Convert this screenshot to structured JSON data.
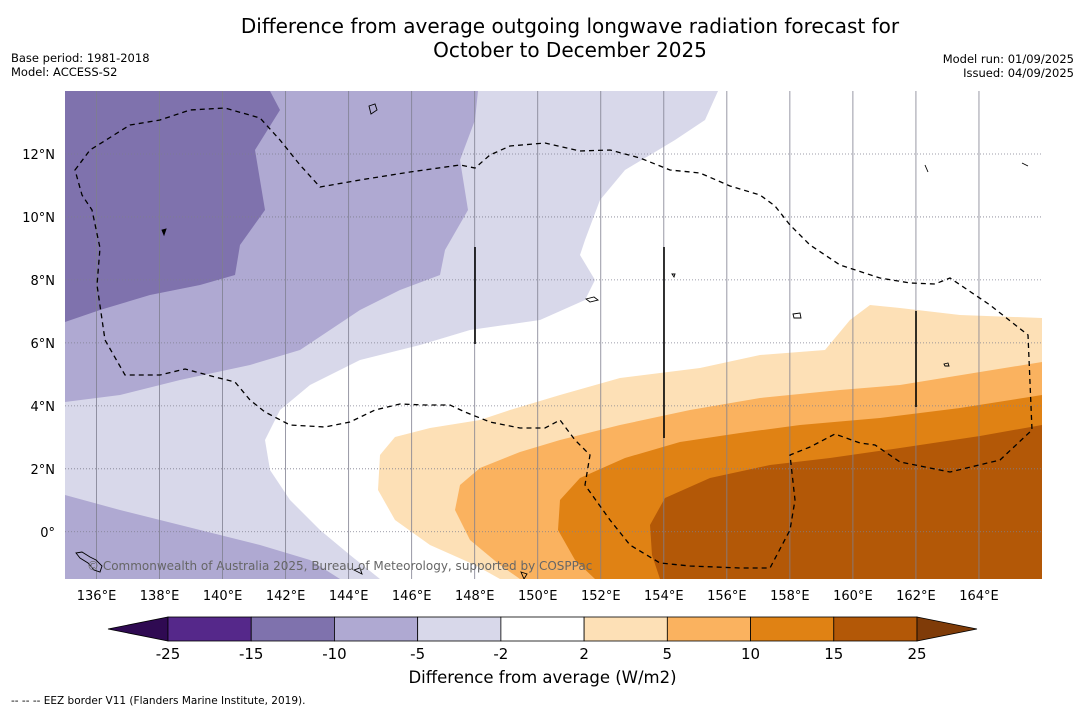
{
  "title_line1": "Difference from average outgoing longwave radiation forecast for",
  "title_line2": "October to December 2025",
  "base_period": "Base period: 1981-2018",
  "model": "Model: ACCESS-S2",
  "model_run": "Model run: 01/09/2025",
  "issued": "Issued: 04/09/2025",
  "copyright": "© Commonwealth of Australia 2025, Bureau of Meteorology, supported by COSPPac",
  "legend_note": "-- -- -- EEZ border V11 (Flanders Marine Institute, 2019).",
  "map": {
    "lon_range": [
      135,
      166
    ],
    "lat_range": [
      -1.5,
      14
    ],
    "lon_ticks": [
      "136°E",
      "138°E",
      "140°E",
      "142°E",
      "144°E",
      "146°E",
      "148°E",
      "150°E",
      "152°E",
      "154°E",
      "156°E",
      "158°E",
      "160°E",
      "162°E",
      "164°E"
    ],
    "lat_ticks": [
      "12°N",
      "10°N",
      "8°N",
      "6°N",
      "4°N",
      "2°N",
      "0°"
    ]
  },
  "colorbar": {
    "title": "Difference from average (W/m2)",
    "tick_labels": [
      "-25",
      "-15",
      "-10",
      "-5",
      "-2",
      "2",
      "5",
      "10",
      "15",
      "25"
    ],
    "colors": {
      "lt_-25": "#2f0a52",
      "-25_-15": "#55288a",
      "-15_-10": "#7f72ad",
      "-10_-5": "#afa9d2",
      "-5_-2": "#d8d8ea",
      "-2_2": "#ffffff",
      "2_5": "#fde0b6",
      "5_10": "#fab25f",
      "10_15": "#e08214",
      "15_25": "#b35807",
      "gt_25": "#7f3b08"
    }
  }
}
